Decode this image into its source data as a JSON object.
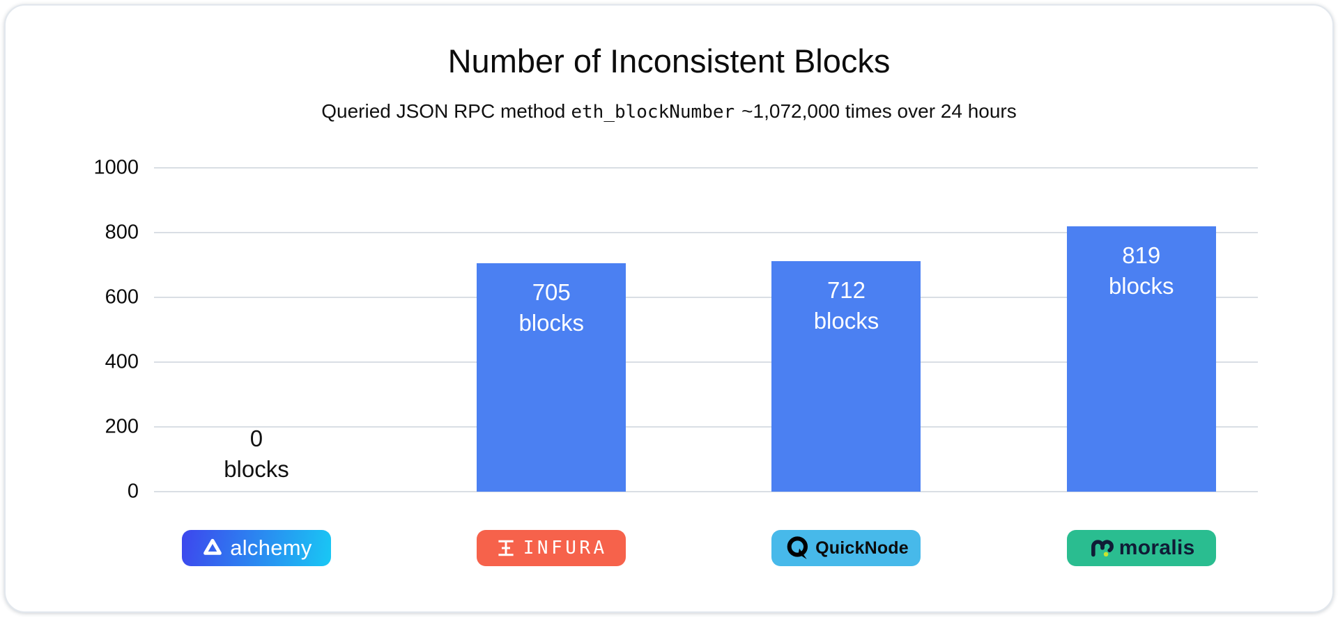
{
  "header": {
    "title": "Number of Inconsistent Blocks",
    "subtitle_prefix": "Queried JSON RPC method",
    "subtitle_code": "eth_blockNumber",
    "subtitle_suffix": "~1,072,000 times over 24 hours"
  },
  "chart_data": {
    "type": "bar",
    "title": "Number of Inconsistent Blocks",
    "subtitle": "Queried JSON RPC method eth_blockNumber ~1,072,000 times over 24 hours",
    "categories": [
      "alchemy",
      "INFURA",
      "QuickNode",
      "moralis"
    ],
    "values": [
      0,
      705,
      712,
      819
    ],
    "bar_labels": [
      "0 blocks",
      "705 blocks",
      "712 blocks",
      "819 blocks"
    ],
    "bar_label_suffix": "blocks",
    "xlabel": "",
    "ylabel": "",
    "ylim": [
      0,
      1000
    ],
    "yticks": [
      0,
      200,
      400,
      600,
      800,
      1000
    ],
    "grid": true,
    "legend": false,
    "bar_color": "#4B80F2",
    "bar_value_text_color": "#FFFFFF",
    "zero_value_text_color": "#111111",
    "gridline_color": "#D9DEE4",
    "tick_text_color": "#0C0C0C"
  },
  "providers": [
    {
      "name": "alchemy",
      "icon": "alchemy-triangle-icon",
      "badge_gradient_from": "#3D46ED",
      "badge_gradient_to": "#19C8F4",
      "label_color": "#FFFFFF"
    },
    {
      "name": "INFURA",
      "icon": "infura-glyph-icon",
      "badge_color": "#F6624B",
      "label_color": "#FFFFFF"
    },
    {
      "name": "QuickNode",
      "icon": "quicknode-q-icon",
      "badge_color": "#47B9EA",
      "label_color": "#0B0B0B"
    },
    {
      "name": "moralis",
      "icon": "moralis-m-icon",
      "badge_color": "#2ABD90",
      "label_color": "#101C36",
      "accent_dot_color": "#C9E52E"
    }
  ]
}
